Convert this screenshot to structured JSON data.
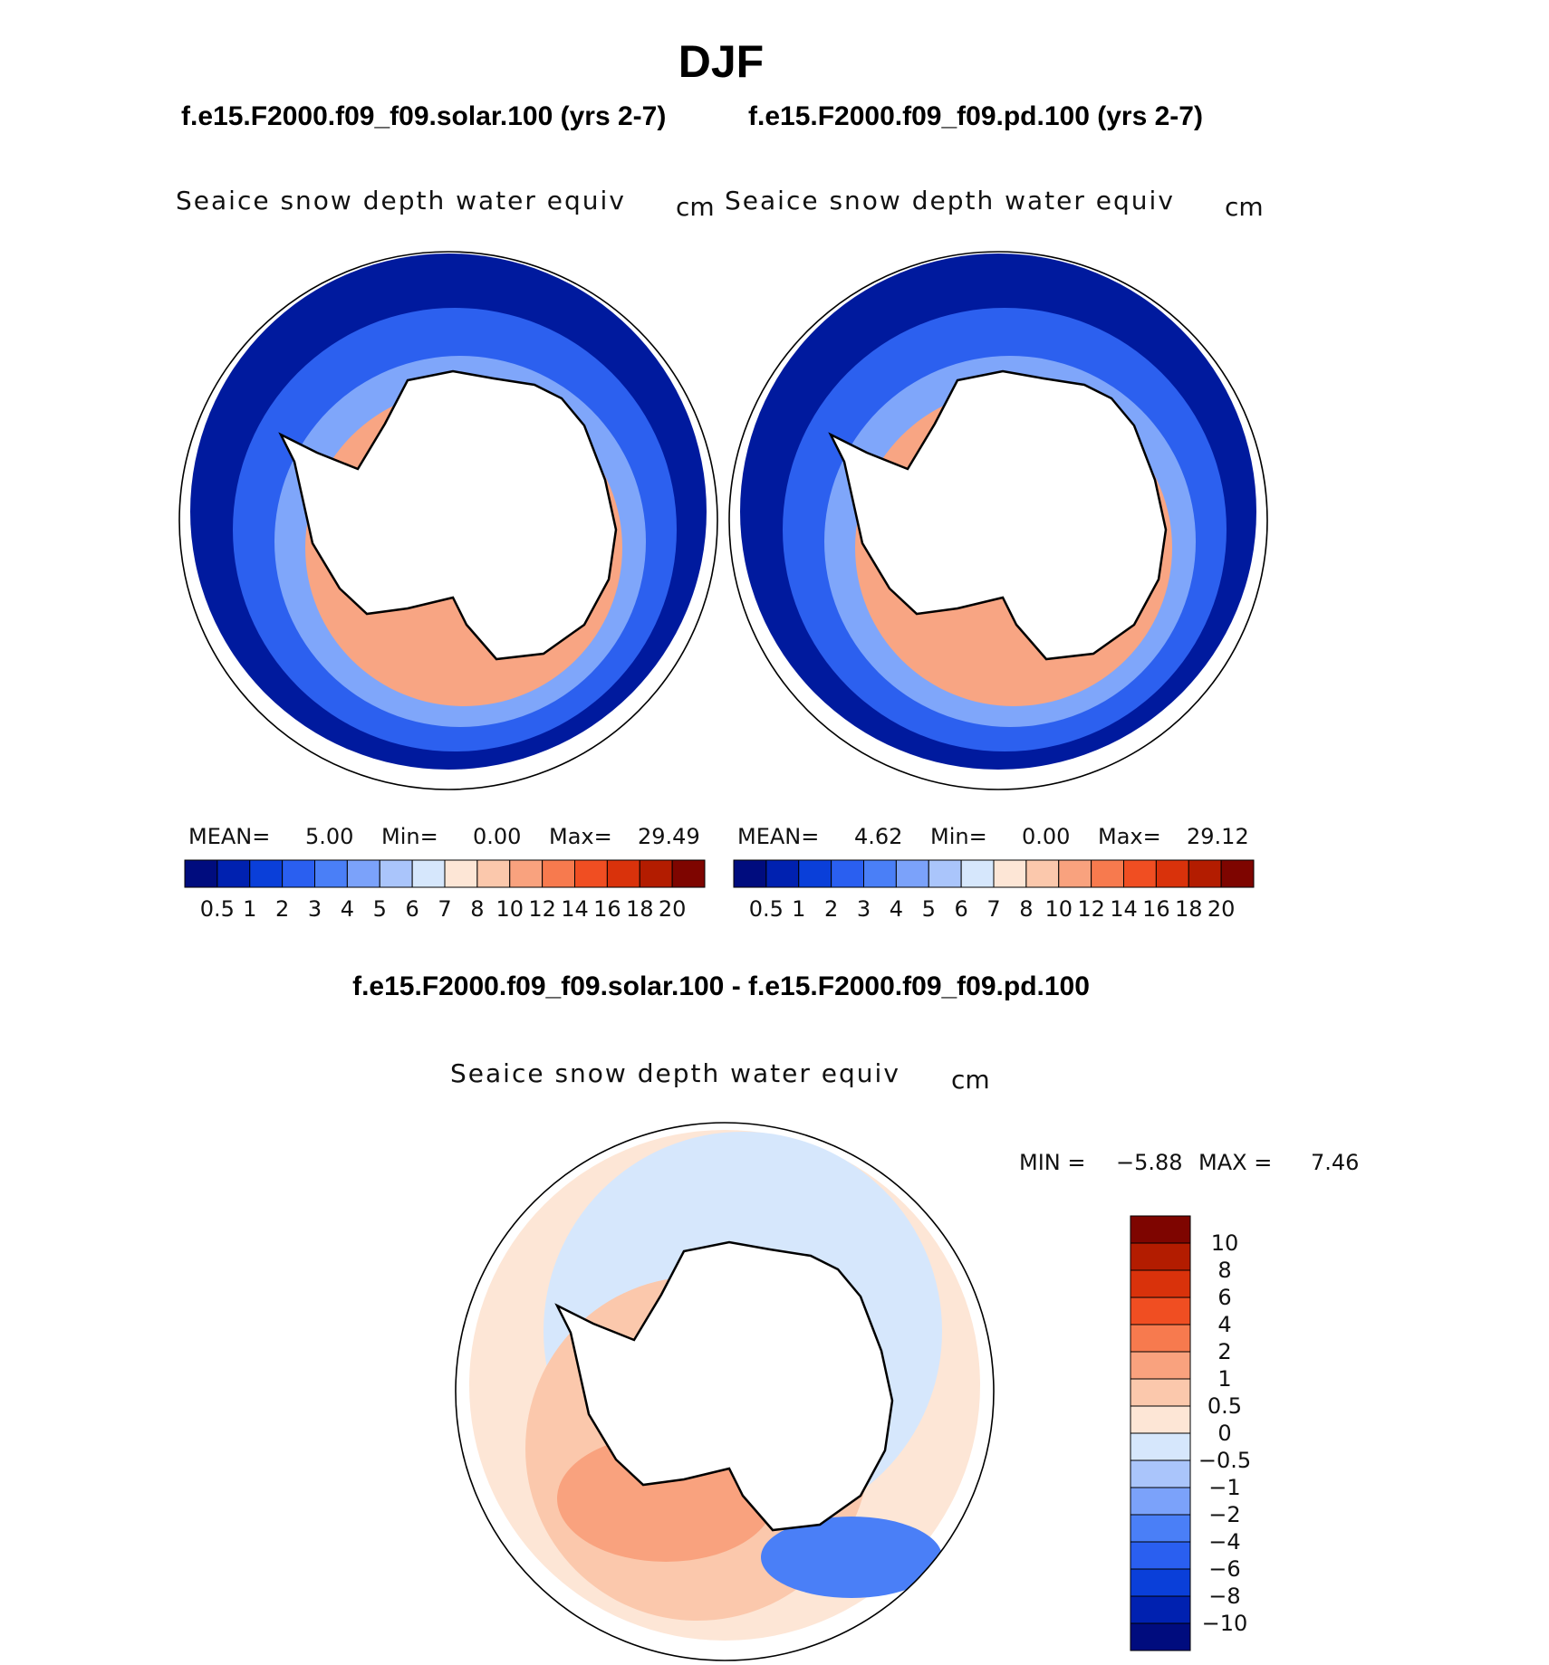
{
  "page": {
    "season": "DJF",
    "case1_header": "f.e15.F2000.f09_f09.solar.100 (yrs 2-7)",
    "case2_header": "f.e15.F2000.f09_f09.pd.100 (yrs 2-7)",
    "diff_header": "f.e15.F2000.f09_f09.solar.100 - f.e15.F2000.f09_f09.pd.100"
  },
  "colors": {
    "abs_palette": [
      "#000c7e",
      "#0021b0",
      "#0a3fd9",
      "#2a5ff0",
      "#4a7ff7",
      "#7ba2fa",
      "#aac5fb",
      "#d6e7fc",
      "#fde6d6",
      "#fbc8ac",
      "#f9a27e",
      "#f77a4e",
      "#f04e22",
      "#d9320b",
      "#b31c00",
      "#7e0500"
    ],
    "diff_palette": [
      "#000c7e",
      "#0021b0",
      "#0a3fd9",
      "#2a5ff0",
      "#4a7ff7",
      "#7ba2fa",
      "#aac5fb",
      "#d6e7fc",
      "#fde6d6",
      "#fbc8ac",
      "#f9a27e",
      "#f77a4e",
      "#f04e22",
      "#d9320b",
      "#b31c00",
      "#7e0500"
    ]
  },
  "chart_data": [
    {
      "type": "heatmap",
      "projection": "south-polar-stereographic",
      "title": "Seaice snow depth water equiv",
      "units": "cm",
      "stats": {
        "mean_label": "MEAN=",
        "mean": "5.00",
        "min_label": "Min=",
        "min": "0.00",
        "max_label": "Max=",
        "max": "29.49"
      },
      "colorbar": {
        "orientation": "horizontal",
        "levels": [
          "0.5",
          "1",
          "2",
          "3",
          "4",
          "5",
          "6",
          "7",
          "8",
          "10",
          "12",
          "14",
          "16",
          "18",
          "20"
        ]
      }
    },
    {
      "type": "heatmap",
      "projection": "south-polar-stereographic",
      "title": "Seaice snow depth water equiv",
      "units": "cm",
      "stats": {
        "mean_label": "MEAN=",
        "mean": "4.62",
        "min_label": "Min=",
        "min": "0.00",
        "max_label": "Max=",
        "max": "29.12"
      },
      "colorbar": {
        "orientation": "horizontal",
        "levels": [
          "0.5",
          "1",
          "2",
          "3",
          "4",
          "5",
          "6",
          "7",
          "8",
          "10",
          "12",
          "14",
          "16",
          "18",
          "20"
        ]
      }
    },
    {
      "type": "heatmap",
      "projection": "south-polar-stereographic",
      "title": "Seaice snow depth water equiv",
      "units": "cm",
      "stats": {
        "min_label": "MIN =",
        "min": "−5.88",
        "max_label": "MAX =",
        "max": "7.46"
      },
      "colorbar": {
        "orientation": "vertical",
        "levels": [
          "10",
          "8",
          "6",
          "4",
          "2",
          "1",
          "0.5",
          "0",
          "−0.5",
          "−1",
          "−2",
          "−4",
          "−6",
          "−8",
          "−10"
        ]
      }
    }
  ]
}
